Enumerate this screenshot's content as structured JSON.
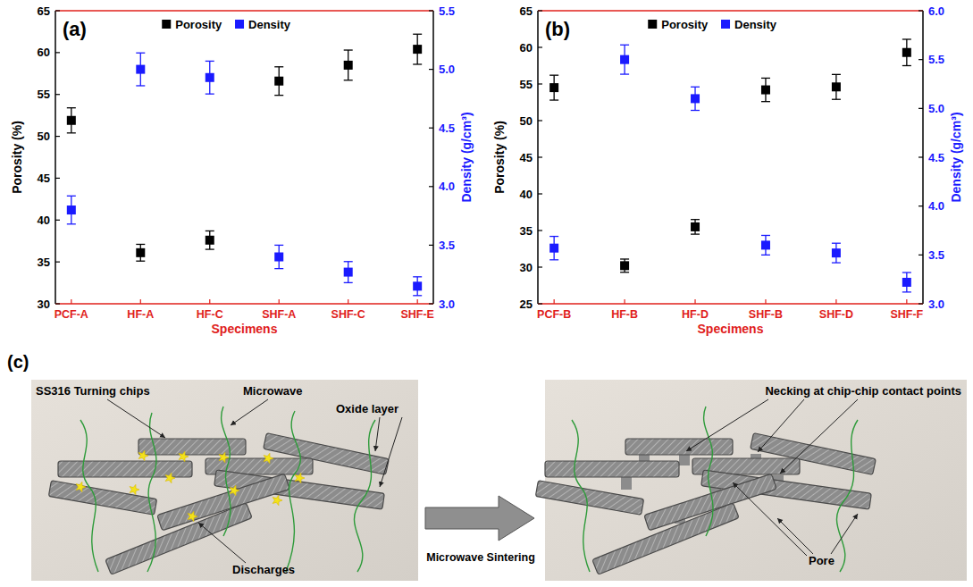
{
  "chart_data": [
    {
      "type": "scatter",
      "panel_label": "(a)",
      "x_label": "Specimens",
      "y_label": "Porosity (%)",
      "y2_label": "Density (g/cm³)",
      "categories": [
        "PCF-A",
        "HF-A",
        "HF-C",
        "SHF-A",
        "SHF-C",
        "SHF-E"
      ],
      "series": [
        {
          "name": "Porosity",
          "color": "#000000",
          "marker": "square",
          "values": [
            51.9,
            36.1,
            37.6,
            56.6,
            58.5,
            60.4
          ],
          "errors": [
            1.5,
            1.0,
            1.1,
            1.7,
            1.8,
            1.8
          ]
        },
        {
          "name": "Density",
          "color": "#1a1aff",
          "marker": "square",
          "axis": "y2",
          "values": [
            3.8,
            5.0,
            4.93,
            3.4,
            3.27,
            3.15
          ],
          "errors": [
            0.12,
            0.14,
            0.14,
            0.1,
            0.09,
            0.08
          ]
        }
      ],
      "ylim": [
        30,
        65
      ],
      "yticks": [
        30,
        35,
        40,
        45,
        50,
        55,
        60,
        65
      ],
      "y2lim": [
        3,
        5.5
      ],
      "y2ticks": [
        {
          "value": 3,
          "label": "3.0"
        },
        {
          "value": 3.5,
          "label": "3.5"
        },
        {
          "value": 4,
          "label": "4.0"
        },
        {
          "value": 4.5,
          "label": "4.5"
        },
        {
          "value": 5,
          "label": "5.0"
        },
        {
          "value": 5.5,
          "label": "5.5"
        }
      ],
      "legend": "top"
    },
    {
      "type": "scatter",
      "panel_label": "(b)",
      "x_label": "Specimens",
      "y_label": "Porosity (%)",
      "y2_label": "Density (g/cm³)",
      "categories": [
        "PCF-B",
        "HF-B",
        "HF-D",
        "SHF-B",
        "SHF-D",
        "SHF-F"
      ],
      "series": [
        {
          "name": "Porosity",
          "color": "#000000",
          "marker": "square",
          "values": [
            54.5,
            30.2,
            35.5,
            54.2,
            54.6,
            59.3
          ],
          "errors": [
            1.7,
            0.9,
            1.0,
            1.6,
            1.7,
            1.8
          ]
        },
        {
          "name": "Density",
          "color": "#1a1aff",
          "marker": "square",
          "axis": "y2",
          "values": [
            3.57,
            5.5,
            5.1,
            3.6,
            3.52,
            3.22
          ],
          "errors": [
            0.12,
            0.15,
            0.12,
            0.1,
            0.1,
            0.1
          ]
        }
      ],
      "ylim": [
        25,
        65
      ],
      "yticks": [
        25,
        30,
        35,
        40,
        45,
        50,
        55,
        60,
        65
      ],
      "y2lim": [
        3,
        6
      ],
      "y2ticks": [
        {
          "value": 3,
          "label": "3.0"
        },
        {
          "value": 3.5,
          "label": "3.5"
        },
        {
          "value": 4,
          "label": "4.0"
        },
        {
          "value": 4.5,
          "label": "4.5"
        },
        {
          "value": 5,
          "label": "5.0"
        },
        {
          "value": 5.5,
          "label": "5.5"
        },
        {
          "value": 6,
          "label": "6.0"
        }
      ],
      "legend": "top"
    }
  ],
  "diagram": {
    "panel_label": "(c)",
    "before": {
      "chips": "SS316 Turning chips",
      "microwave": "Microwave",
      "oxide": "Oxide layer",
      "discharges": "Discharges"
    },
    "process": "Microwave Sintering",
    "after": {
      "necking": "Necking at chip-chip contact points",
      "pore": "Pore"
    }
  }
}
